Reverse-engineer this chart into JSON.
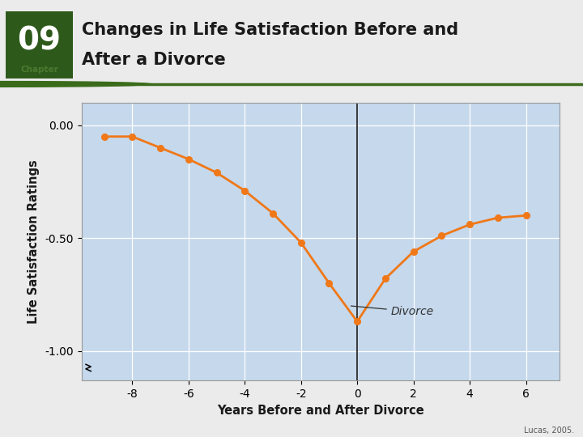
{
  "title_line1": "Changes in Life Satisfaction Before and",
  "title_line2": "After a Divorce",
  "chapter_num": "09",
  "chapter_label": "Chapter",
  "xlabel": "Years Before and After Divorce",
  "ylabel": "Life Satisfaction Ratings",
  "source": "Lucas, 2005.",
  "annotation": "Divorce",
  "x_values": [
    -9,
    -8,
    -7,
    -6,
    -5,
    -4,
    -3,
    -2,
    -1,
    0,
    1,
    2,
    3,
    4,
    5,
    6
  ],
  "y_values": [
    -0.05,
    -0.05,
    -0.1,
    -0.15,
    -0.21,
    -0.29,
    -0.39,
    -0.52,
    -0.7,
    -0.87,
    -0.68,
    -0.56,
    -0.49,
    -0.44,
    -0.41,
    -0.4
  ],
  "xlim": [
    -9.8,
    7.2
  ],
  "ylim": [
    -1.13,
    0.1
  ],
  "yticks": [
    0.0,
    -0.5,
    -1.0
  ],
  "ytick_labels": [
    "0.00",
    "-0.50",
    "-1.00"
  ],
  "xticks": [
    -8,
    -6,
    -4,
    -2,
    0,
    2,
    4,
    6
  ],
  "line_color": "#F07818",
  "marker_color": "#F07818",
  "bg_color": "#C5D8EC",
  "fig_bg_color": "#EBEBEB",
  "header_bg_color": "#EBEBEB",
  "title_color": "#1A1A1A",
  "chapter_num_color": "#2D5A1B",
  "chapter_label_color": "#4A7A30",
  "separator_line_color": "#3A6B1A",
  "vline_color": "#1A1A1A",
  "grid_color": "#FFFFFF",
  "axis_label_color": "#1A1A1A",
  "annotation_color": "#333333",
  "spine_color": "#999999"
}
